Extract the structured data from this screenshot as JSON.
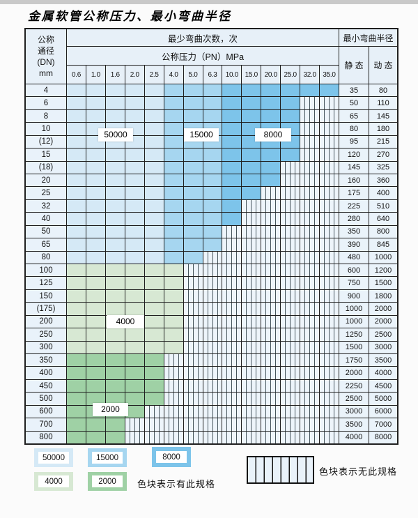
{
  "title": "金属软管公称压力、最小弯曲半径",
  "table_header": {
    "dn_lines": [
      "公称",
      "通径",
      "(DN)",
      "mm"
    ],
    "bend_times_label": "最少弯曲次数，次",
    "pressure_label": "公称压力（PN）MPa",
    "radius_label": "最小弯曲半径",
    "static_label": "静 态",
    "dynamic_label": "动 态"
  },
  "zones": [
    {
      "cycles": "50000",
      "color": "#d5e9f6",
      "applies_to": "DN 4-80 at PN 0.6-2.5"
    },
    {
      "cycles": "15000",
      "color": "#a6d6f0",
      "applies_to": "DN 4-80 at PN 4.0-6.3"
    },
    {
      "cycles": "8000",
      "color": "#7dc4ea",
      "applies_to": "DN 4-80 at PN 10.0-35.0"
    },
    {
      "cycles": "4000",
      "color": "#d7e8d3",
      "applies_to": "DN 100-300"
    },
    {
      "cycles": "2000",
      "color": "#9fd1a5",
      "applies_to": "DN 350-800"
    }
  ],
  "legend": {
    "available_note": "色块表示有此规格",
    "unavailable_note": "色块表示无此规格"
  },
  "chart_data": {
    "type": "table",
    "title": "金属软管公称压力、最小弯曲半径",
    "column_groups": [
      "公称通径(DN) mm",
      "最少弯曲次数，次 / 公称压力（PN）MPa",
      "最小弯曲半径 静态",
      "最小弯曲半径 动态"
    ],
    "pressures_mpa": [
      0.6,
      1.0,
      1.6,
      2.0,
      2.5,
      4.0,
      5.0,
      6.3,
      10.0,
      15.0,
      20.0,
      25.0,
      32.0,
      35.0
    ],
    "rows": [
      {
        "dn": "4",
        "zone": "blue",
        "max_pn": 35.0,
        "static_r": 35,
        "dynamic_r": 80
      },
      {
        "dn": "6",
        "zone": "blue",
        "max_pn": 25.0,
        "static_r": 50,
        "dynamic_r": 110
      },
      {
        "dn": "8",
        "zone": "blue",
        "max_pn": 25.0,
        "static_r": 65,
        "dynamic_r": 145
      },
      {
        "dn": "10",
        "zone": "blue",
        "max_pn": 25.0,
        "static_r": 80,
        "dynamic_r": 180
      },
      {
        "dn": "(12)",
        "zone": "blue",
        "max_pn": 25.0,
        "static_r": 95,
        "dynamic_r": 215
      },
      {
        "dn": "15",
        "zone": "blue",
        "max_pn": 25.0,
        "static_r": 120,
        "dynamic_r": 270
      },
      {
        "dn": "(18)",
        "zone": "blue",
        "max_pn": 20.0,
        "static_r": 145,
        "dynamic_r": 325
      },
      {
        "dn": "20",
        "zone": "blue",
        "max_pn": 20.0,
        "static_r": 160,
        "dynamic_r": 360
      },
      {
        "dn": "25",
        "zone": "blue",
        "max_pn": 15.0,
        "static_r": 175,
        "dynamic_r": 400
      },
      {
        "dn": "32",
        "zone": "blue",
        "max_pn": 10.0,
        "static_r": 225,
        "dynamic_r": 510
      },
      {
        "dn": "40",
        "zone": "blue",
        "max_pn": 10.0,
        "static_r": 280,
        "dynamic_r": 640
      },
      {
        "dn": "50",
        "zone": "blue",
        "max_pn": 6.3,
        "static_r": 350,
        "dynamic_r": 800
      },
      {
        "dn": "65",
        "zone": "blue",
        "max_pn": 6.3,
        "static_r": 390,
        "dynamic_r": 845
      },
      {
        "dn": "80",
        "zone": "blue",
        "max_pn": 5.0,
        "static_r": 480,
        "dynamic_r": 1000
      },
      {
        "dn": "100",
        "zone": "green4000",
        "max_pn": 4.0,
        "static_r": 600,
        "dynamic_r": 1200
      },
      {
        "dn": "125",
        "zone": "green4000",
        "max_pn": 4.0,
        "static_r": 750,
        "dynamic_r": 1500
      },
      {
        "dn": "150",
        "zone": "green4000",
        "max_pn": 4.0,
        "static_r": 900,
        "dynamic_r": 1800
      },
      {
        "dn": "(175)",
        "zone": "green4000",
        "max_pn": 4.0,
        "static_r": 1000,
        "dynamic_r": 2000
      },
      {
        "dn": "200",
        "zone": "green4000",
        "max_pn": 4.0,
        "static_r": 1000,
        "dynamic_r": 2000
      },
      {
        "dn": "250",
        "zone": "green4000",
        "max_pn": 4.0,
        "static_r": 1250,
        "dynamic_r": 2500
      },
      {
        "dn": "300",
        "zone": "green4000",
        "max_pn": 4.0,
        "static_r": 1500,
        "dynamic_r": 3000
      },
      {
        "dn": "350",
        "zone": "green2000",
        "max_pn": 2.5,
        "static_r": 1750,
        "dynamic_r": 3500
      },
      {
        "dn": "400",
        "zone": "green2000",
        "max_pn": 2.5,
        "static_r": 2000,
        "dynamic_r": 4000
      },
      {
        "dn": "450",
        "zone": "green2000",
        "max_pn": 2.5,
        "static_r": 2250,
        "dynamic_r": 4500
      },
      {
        "dn": "500",
        "zone": "green2000",
        "max_pn": 2.5,
        "static_r": 2500,
        "dynamic_r": 5000
      },
      {
        "dn": "600",
        "zone": "green2000",
        "max_pn": 2.0,
        "static_r": 3000,
        "dynamic_r": 6000
      },
      {
        "dn": "700",
        "zone": "green2000",
        "max_pn": 1.6,
        "static_r": 3500,
        "dynamic_r": 7000
      },
      {
        "dn": "800",
        "zone": "green2000",
        "max_pn": 1.6,
        "static_r": 4000,
        "dynamic_r": 8000
      }
    ],
    "legend_notes": [
      "色块表示有此规格",
      "色块表示无此规格"
    ]
  }
}
